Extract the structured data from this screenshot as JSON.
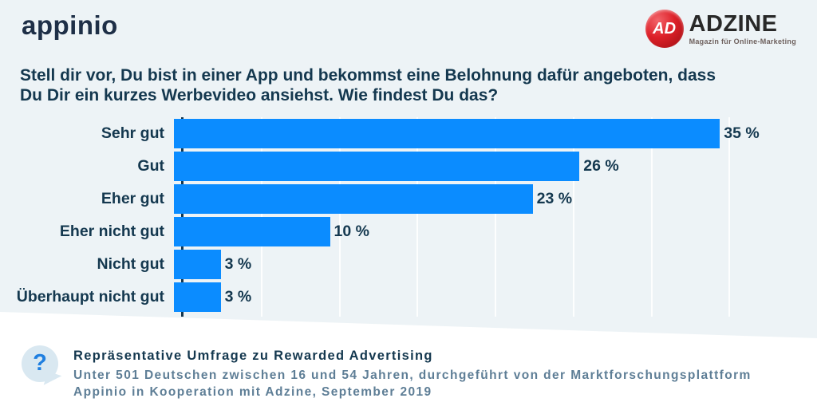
{
  "header": {
    "appinio_logo_text": "appinio",
    "adzine_logo": {
      "badge_text": "AD",
      "name": "ADZINE",
      "tagline": "Magazin für Online-Marketing"
    }
  },
  "title": {
    "line1": "Stell dir vor, Du bist in einer App und bekommst eine Belohnung dafür angeboten, dass",
    "line2": "Du Dir ein kurzes Werbevideo ansiehst. Wie findest Du das?"
  },
  "chart_data": {
    "type": "bar",
    "orientation": "horizontal",
    "title": "Stell dir vor, Du bist in einer App und bekommst eine Belohnung dafür angeboten, dass Du Dir ein kurzes Werbevideo ansiehst. Wie findest Du das?",
    "categories": [
      "Sehr gut",
      "Gut",
      "Eher gut",
      "Eher nicht gut",
      "Nicht gut",
      "Überhaupt nicht gut"
    ],
    "values": [
      35,
      26,
      23,
      10,
      3,
      3
    ],
    "value_labels": [
      "35 %",
      "26 %",
      "23 %",
      "10 %",
      "3 %",
      "3 %"
    ],
    "unit": "percent",
    "axis_range": [
      0,
      40
    ],
    "gridline_step": 5,
    "grid": "faint vertical lines every 5%",
    "legend": "none",
    "bar_color": "#0B8CFF",
    "axis_color": "#16364D"
  },
  "footer": {
    "icon": "question-mark-speech-bubble",
    "heading": "Repräsentative Umfrage zu Rewarded Advertising",
    "subtitle_lines": [
      "Unter 501 Deutschen zwischen 16 und 54 Jahren, durchgeführt von der Marktforschungsplattform",
      "Appinio in Kooperation mit Adzine, September 2019"
    ]
  },
  "colors": {
    "background": "#EDF3F6",
    "footer_background": "#FFFFFF",
    "text_primary": "#14384F",
    "text_secondary": "#5E7E96",
    "bar_blue": "#0B8CFF",
    "adzine_red": "#D01218",
    "question_blue": "#1F7FE0"
  }
}
